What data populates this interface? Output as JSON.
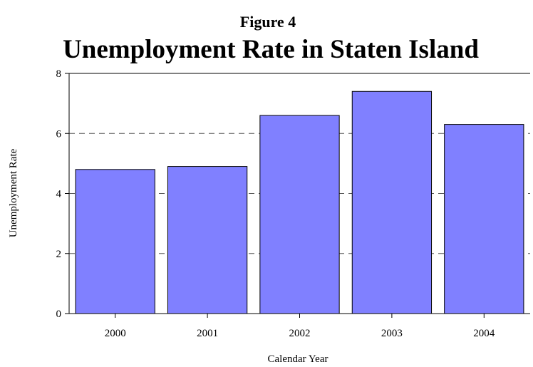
{
  "chart_data": {
    "type": "bar",
    "supertitle": "Figure 4",
    "title": "Unemployment Rate in Staten Island",
    "xlabel": "Calendar Year",
    "ylabel": "Unemployment Rate",
    "categories": [
      "2000",
      "2001",
      "2002",
      "2003",
      "2004"
    ],
    "values": [
      4.8,
      4.9,
      6.6,
      7.4,
      6.3
    ],
    "ylim": [
      0,
      8
    ],
    "yticks": [
      0,
      2,
      4,
      6,
      8
    ],
    "grid": "dashed horizontal at y ticks",
    "legend": "none",
    "colors": {
      "bar_fill": "#8080ff",
      "bar_stroke": "#000000",
      "grid": "#555555",
      "axis": "#000000"
    }
  }
}
